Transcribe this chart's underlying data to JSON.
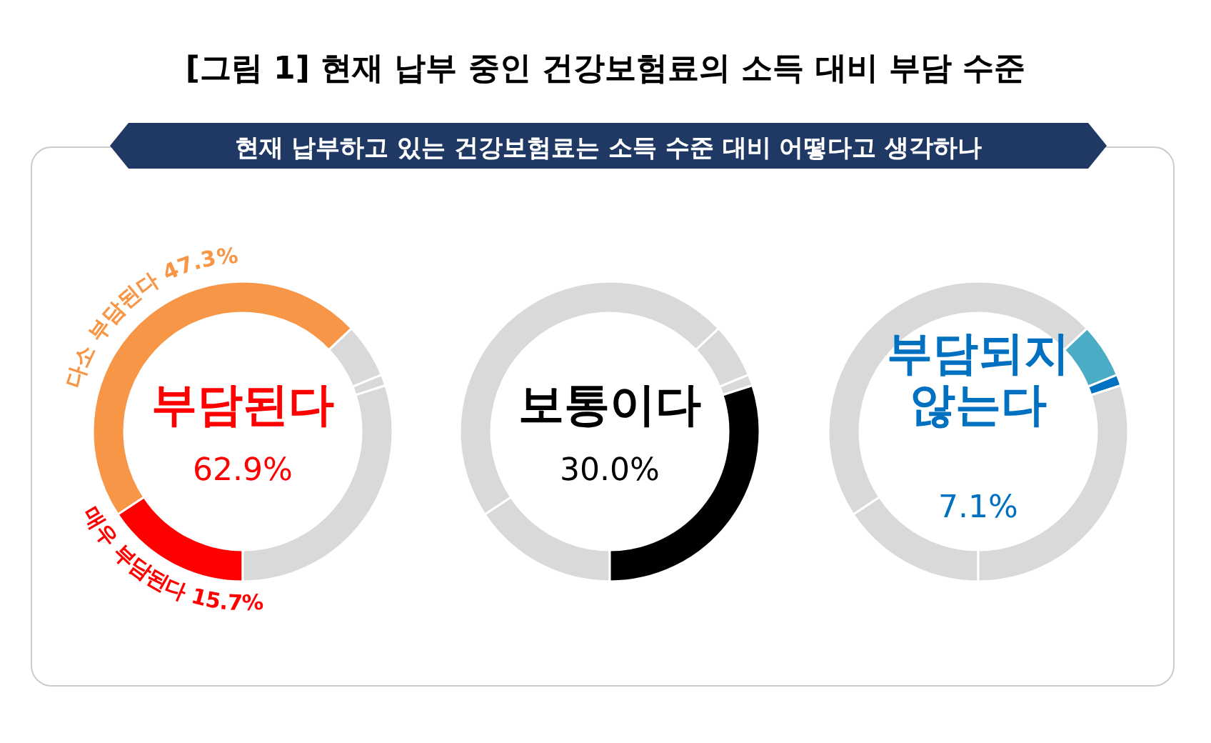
{
  "chart_data": [
    {
      "type": "donut",
      "title": "[그림 1] 현재 납부 중인 건강보험료의 소득 대비 부담 수준",
      "subtitle": "현재 납부하고 있는 건강보험료는 소득 수준 대비 어떻다고 생각하나",
      "categories": [
        "매우 부담된다",
        "다소 부담된다",
        null,
        null,
        null
      ],
      "values": [
        15.7,
        47.3,
        5.9,
        1.2,
        30.0
      ],
      "colors": [
        "#ff0000",
        "#f79646",
        "#d9d9d9",
        "#d9d9d9",
        "#d9d9d9"
      ],
      "value_labels": [
        "15.7%",
        "47.3%",
        null,
        null,
        null
      ],
      "annotations": [
        "부담된다",
        "62.9%"
      ]
    },
    {
      "type": "donut",
      "categories": [
        null,
        null,
        null,
        null,
        null
      ],
      "values": [
        15.7,
        47.3,
        5.9,
        1.2,
        30.0
      ],
      "colors": [
        "#d9d9d9",
        "#d9d9d9",
        "#d9d9d9",
        "#d9d9d9",
        "#000000"
      ],
      "annotations": [
        "보통이다",
        "30.0%"
      ]
    },
    {
      "type": "donut",
      "categories": [
        null,
        null,
        null,
        null,
        null
      ],
      "values": [
        15.7,
        47.3,
        5.9,
        1.2,
        30.0
      ],
      "colors": [
        "#d9d9d9",
        "#d9d9d9",
        "#4bacc6",
        "#0070c0",
        "#d9d9d9"
      ],
      "annotations": [
        "부담되지 않는다",
        "7.1%"
      ]
    }
  ]
}
